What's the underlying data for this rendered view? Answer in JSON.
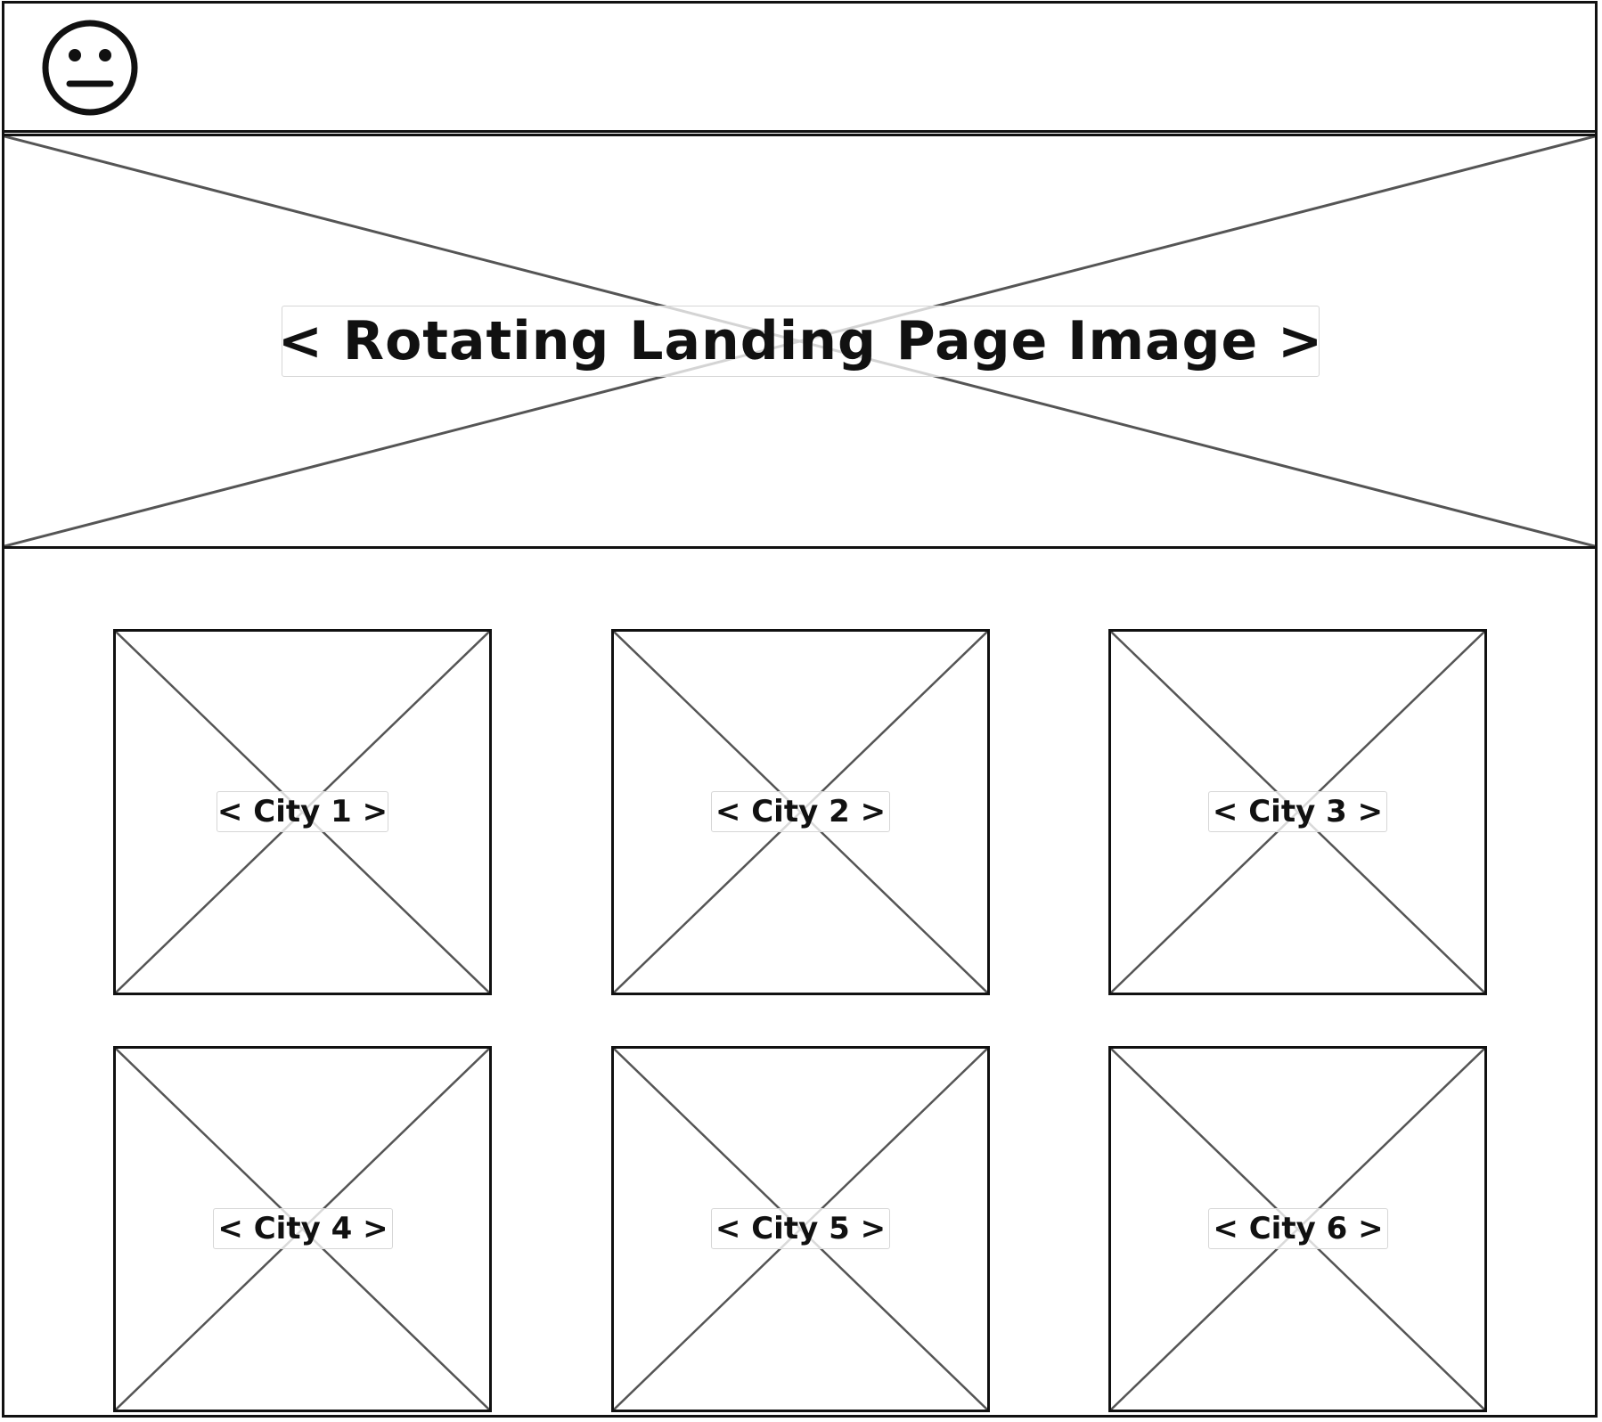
{
  "header": {
    "logo_icon": "neutral-face-icon"
  },
  "hero": {
    "label": "< Rotating Landing Page Image >"
  },
  "cities": [
    {
      "label": "< City 1 >"
    },
    {
      "label": "< City 2 >"
    },
    {
      "label": "< City 3 >"
    },
    {
      "label": "< City 4 >"
    },
    {
      "label": "< City 5 >"
    },
    {
      "label": "< City 6 >"
    }
  ]
}
